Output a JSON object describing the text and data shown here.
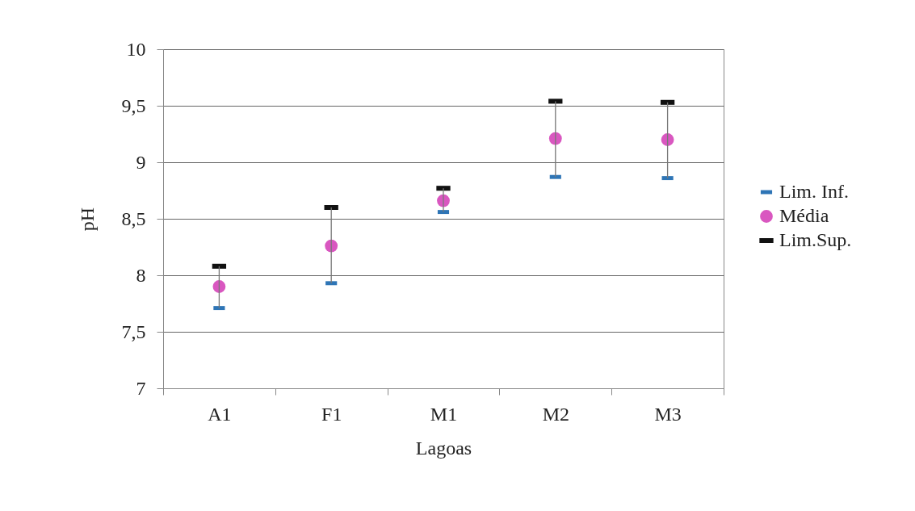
{
  "chart_data": {
    "type": "scatter",
    "xlabel": "Lagoas",
    "ylabel": "pH",
    "categories": [
      "A1",
      "F1",
      "M1",
      "M2",
      "M3"
    ],
    "series": [
      {
        "name": "Lim. Inf.",
        "color": "#2e75b6",
        "marker": "square",
        "values": [
          7.71,
          7.93,
          8.56,
          8.87,
          8.86
        ]
      },
      {
        "name": "Média",
        "color": "#d957c0",
        "marker": "circle",
        "values": [
          7.9,
          8.26,
          8.66,
          9.21,
          9.2
        ]
      },
      {
        "name": "Lim.Sup.",
        "color": "#111111",
        "marker": "square",
        "values": [
          8.08,
          8.6,
          8.77,
          9.54,
          9.53
        ]
      }
    ],
    "ylim": [
      7,
      10
    ],
    "yticks": [
      7,
      {
        "value": 7.5,
        "label": "7,5"
      },
      8,
      {
        "value": 8.5,
        "label": "8,5"
      },
      9,
      {
        "value": 9.5,
        "label": "9,5"
      },
      10
    ],
    "grid": "y",
    "legend": "right"
  }
}
